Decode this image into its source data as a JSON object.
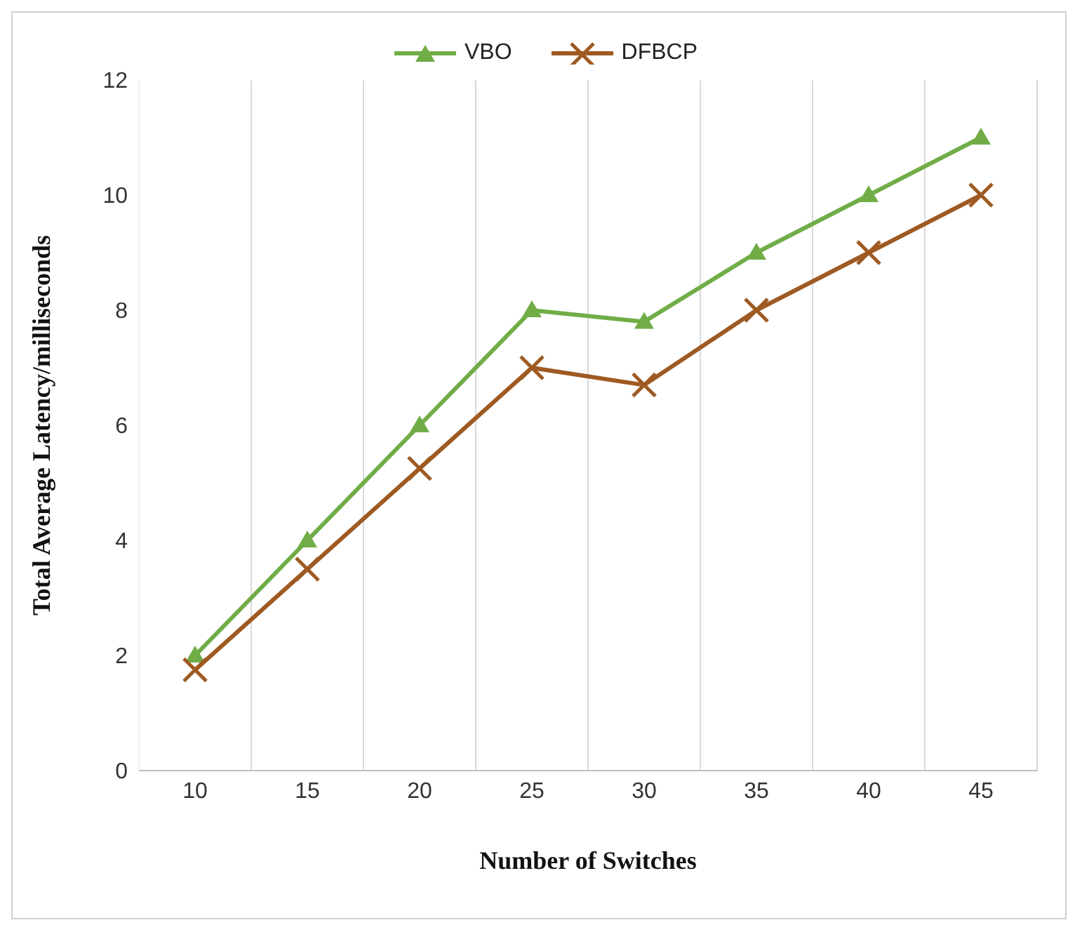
{
  "chart_data": {
    "type": "line",
    "xlabel": "Number of Switches",
    "ylabel": "Total Average Latency/milliseconds",
    "categories": [
      "10",
      "15",
      "20",
      "25",
      "30",
      "35",
      "40",
      "45"
    ],
    "series": [
      {
        "name": "VBO",
        "color": "#70ad47",
        "marker": "triangle",
        "values": [
          2,
          4,
          6,
          8,
          7.8,
          9,
          10,
          11
        ]
      },
      {
        "name": "DFBCP",
        "color": "#9e5a22",
        "marker": "cross",
        "values": [
          1.75,
          3.5,
          5.25,
          7,
          6.7,
          8,
          9,
          10
        ]
      }
    ],
    "ylim": [
      0,
      12
    ],
    "yticks": [
      0,
      2,
      4,
      6,
      8,
      10,
      12
    ],
    "grid": "x",
    "legend": "top"
  }
}
